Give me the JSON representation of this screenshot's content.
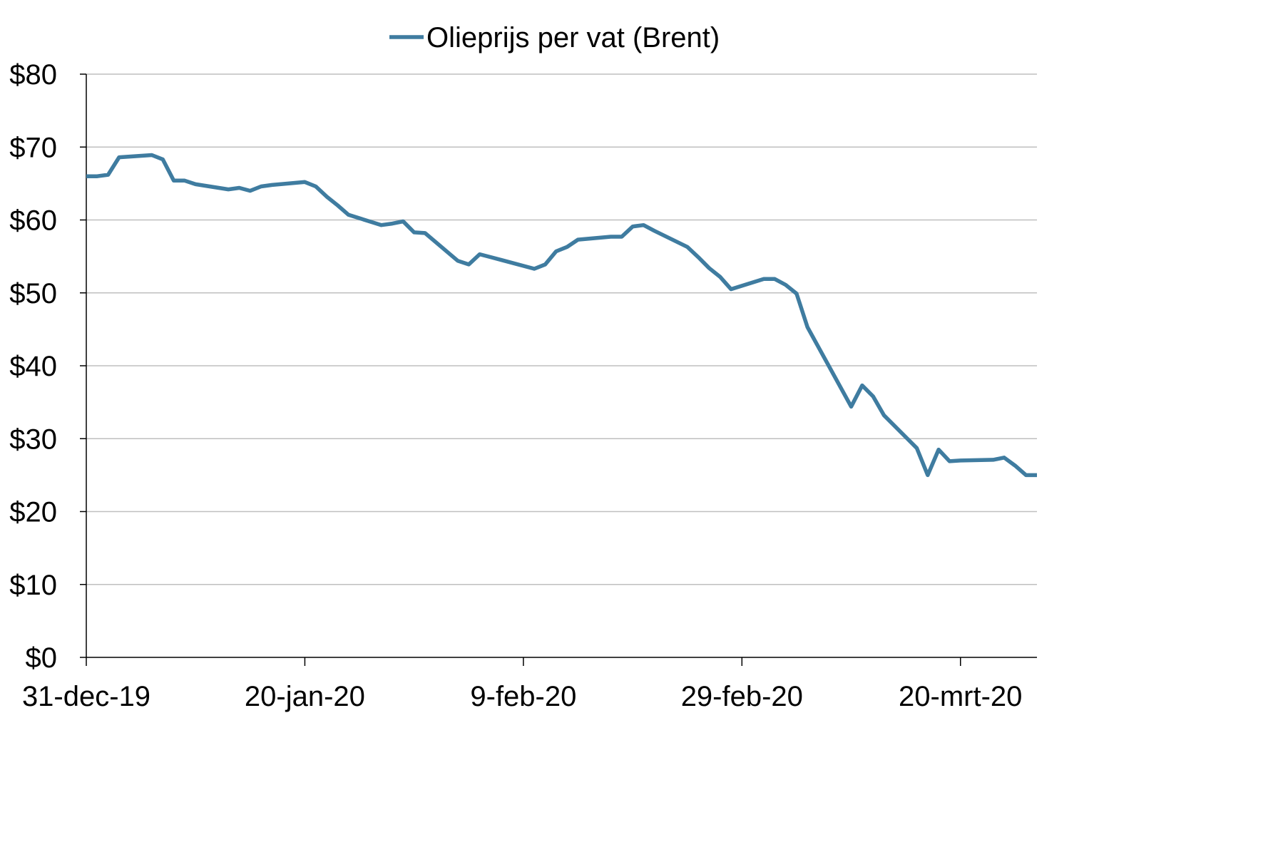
{
  "chart_data": {
    "type": "line",
    "title": "",
    "xlabel": "",
    "ylabel": "",
    "legend": {
      "position": "top-center"
    },
    "x_ticks": [
      "31-dec-19",
      "20-jan-20",
      "9-feb-20",
      "29-feb-20",
      "20-mrt-20"
    ],
    "y_ticks": [
      "$0",
      "$10",
      "$20",
      "$30",
      "$40",
      "$50",
      "$60",
      "$70",
      "$80"
    ],
    "ylim": [
      0,
      80
    ],
    "xlim": [
      "2019-12-31",
      "2020-03-27"
    ],
    "grid": "horizontal",
    "series": [
      {
        "name": "Olieprijs per vat (Brent)",
        "color": "#3f7ca0",
        "x": [
          "2019-12-31",
          "2020-01-01",
          "2020-01-02",
          "2020-01-03",
          "2020-01-06",
          "2020-01-07",
          "2020-01-08",
          "2020-01-09",
          "2020-01-10",
          "2020-01-13",
          "2020-01-14",
          "2020-01-15",
          "2020-01-16",
          "2020-01-17",
          "2020-01-20",
          "2020-01-21",
          "2020-01-22",
          "2020-01-23",
          "2020-01-24",
          "2020-01-27",
          "2020-01-28",
          "2020-01-29",
          "2020-01-30",
          "2020-01-31",
          "2020-02-03",
          "2020-02-04",
          "2020-02-05",
          "2020-02-06",
          "2020-02-07",
          "2020-02-10",
          "2020-02-11",
          "2020-02-12",
          "2020-02-13",
          "2020-02-14",
          "2020-02-17",
          "2020-02-18",
          "2020-02-19",
          "2020-02-20",
          "2020-02-21",
          "2020-02-24",
          "2020-02-25",
          "2020-02-26",
          "2020-02-27",
          "2020-02-28",
          "2020-03-02",
          "2020-03-03",
          "2020-03-04",
          "2020-03-05",
          "2020-03-06",
          "2020-03-10",
          "2020-03-11",
          "2020-03-12",
          "2020-03-13",
          "2020-03-16",
          "2020-03-17",
          "2020-03-18",
          "2020-03-19",
          "2020-03-20",
          "2020-03-23",
          "2020-03-24",
          "2020-03-25",
          "2020-03-26",
          "2020-03-27"
        ],
        "values": [
          66.0,
          66.0,
          66.2,
          68.6,
          68.9,
          68.3,
          65.4,
          65.4,
          64.9,
          64.2,
          64.4,
          64.0,
          64.6,
          64.8,
          65.2,
          64.6,
          63.2,
          62.0,
          60.7,
          59.3,
          59.5,
          59.8,
          58.3,
          58.2,
          54.4,
          53.9,
          55.3,
          54.9,
          54.5,
          53.3,
          53.9,
          55.7,
          56.3,
          57.3,
          57.7,
          57.7,
          59.1,
          59.3,
          58.5,
          56.3,
          54.9,
          53.4,
          52.2,
          50.5,
          51.9,
          51.9,
          51.1,
          49.9,
          45.3,
          34.4,
          37.3,
          35.8,
          33.2,
          28.7,
          25.0,
          28.5,
          26.9,
          27.0,
          27.1,
          27.4,
          26.3,
          25.0,
          25.0
        ]
      }
    ]
  }
}
